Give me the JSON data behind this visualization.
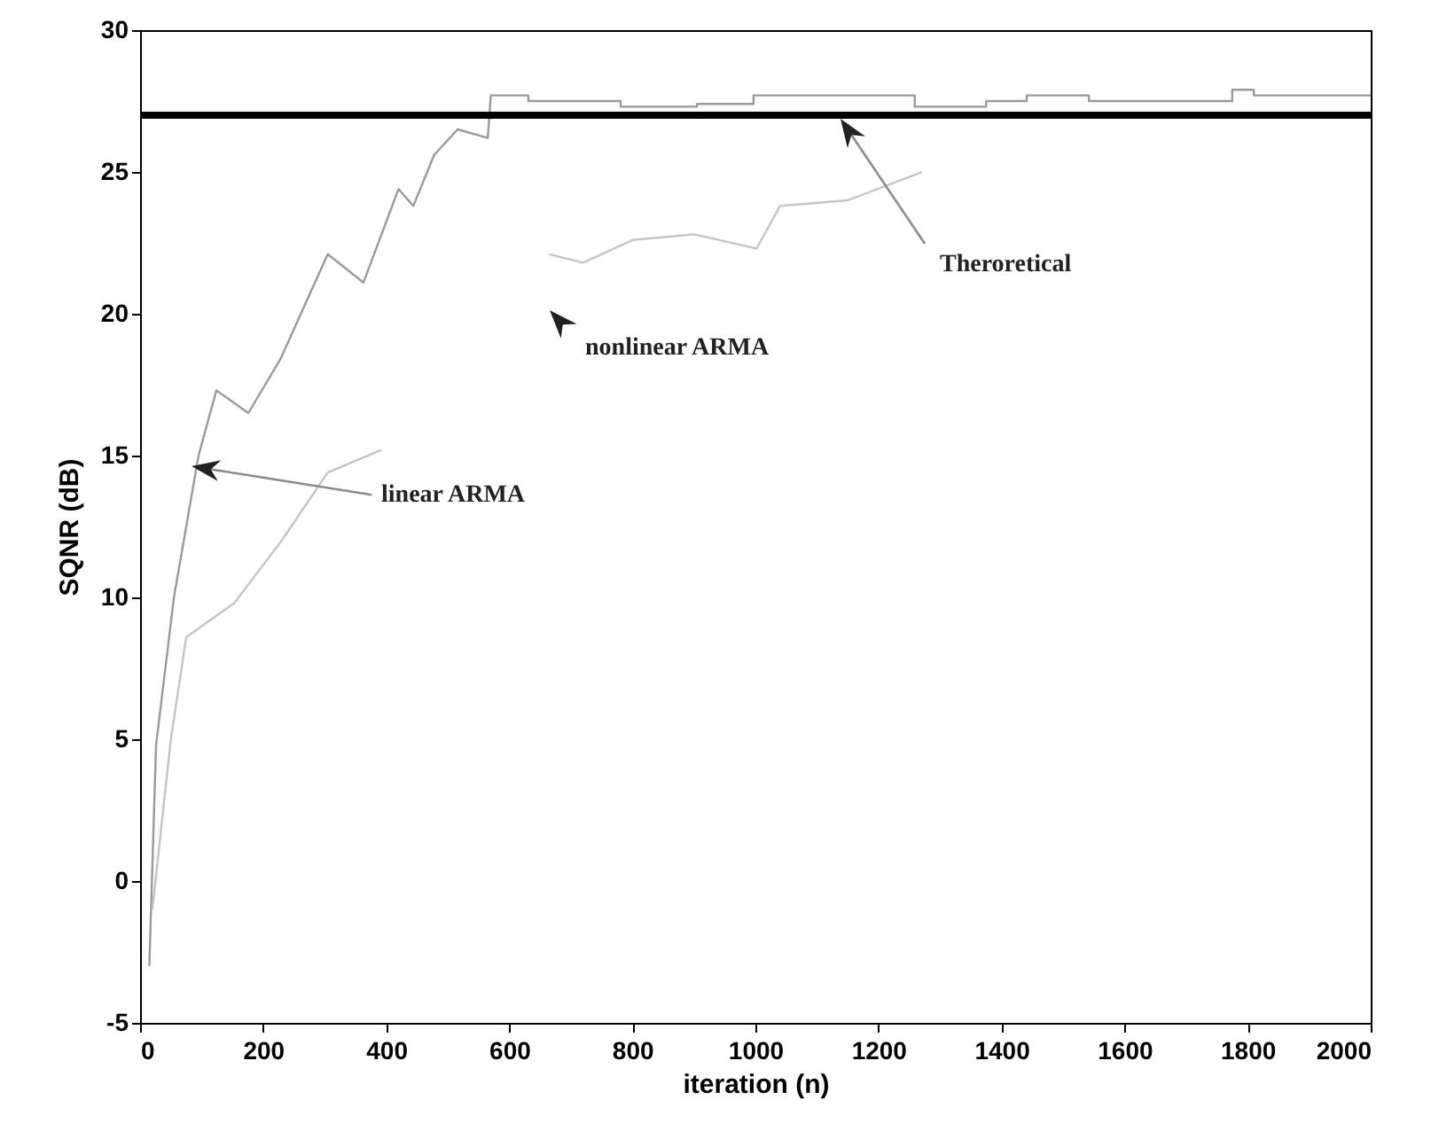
{
  "chart_data": {
    "type": "line",
    "xlabel": "iteration (n)",
    "ylabel": "SQNR (dB)",
    "xlim": [
      0,
      2000
    ],
    "ylim": [
      -5,
      30
    ],
    "xticks": [
      0,
      200,
      400,
      600,
      800,
      1000,
      1200,
      1400,
      1600,
      1800,
      2000
    ],
    "yticks": [
      -5,
      0,
      5,
      10,
      15,
      20,
      25,
      30
    ],
    "grid": false,
    "series": [
      {
        "color": "#9a9a9a",
        "x": [
          15,
          26,
          55,
          95,
          124,
          176,
          228,
          305,
          363,
          420,
          444,
          478,
          516,
          565,
          570,
          631,
          631,
          781,
          781,
          905,
          905,
          997,
          997,
          1259,
          1259,
          1375,
          1375,
          1441,
          1441,
          1542,
          1542,
          1775,
          1775,
          1810,
          1810,
          2000
        ],
        "values": [
          -3,
          4.8,
          10,
          15,
          17.3,
          16.5,
          18.4,
          22.1,
          21.1,
          24.4,
          23.8,
          25.6,
          26.5,
          26.2,
          27.7,
          27.7,
          27.5,
          27.5,
          27.3,
          27.3,
          27.4,
          27.4,
          27.7,
          27.7,
          27.3,
          27.3,
          27.5,
          27.5,
          27.7,
          27.7,
          27.5,
          27.5,
          27.9,
          27.9,
          27.7,
          27.7
        ]
      },
      {
        "color": "#c4c4c4",
        "x": [
          20,
          50,
          75,
          153,
          230,
          305,
          392,
          500,
          665,
          720,
          800,
          900,
          1002,
          1040,
          1150,
          1271
        ],
        "values": [
          -1,
          5,
          8.6,
          9.8,
          12,
          14.4,
          15.2,
          null,
          22.1,
          21.8,
          22.6,
          22.8,
          22.3,
          23.8,
          24,
          25
        ]
      }
    ],
    "ref_lines": [
      {
        "axis": "y",
        "value": 27,
        "color": "#000000"
      }
    ],
    "annotations": [
      "linear ARMA",
      "nonlinear ARMA",
      "Theroretical"
    ]
  }
}
